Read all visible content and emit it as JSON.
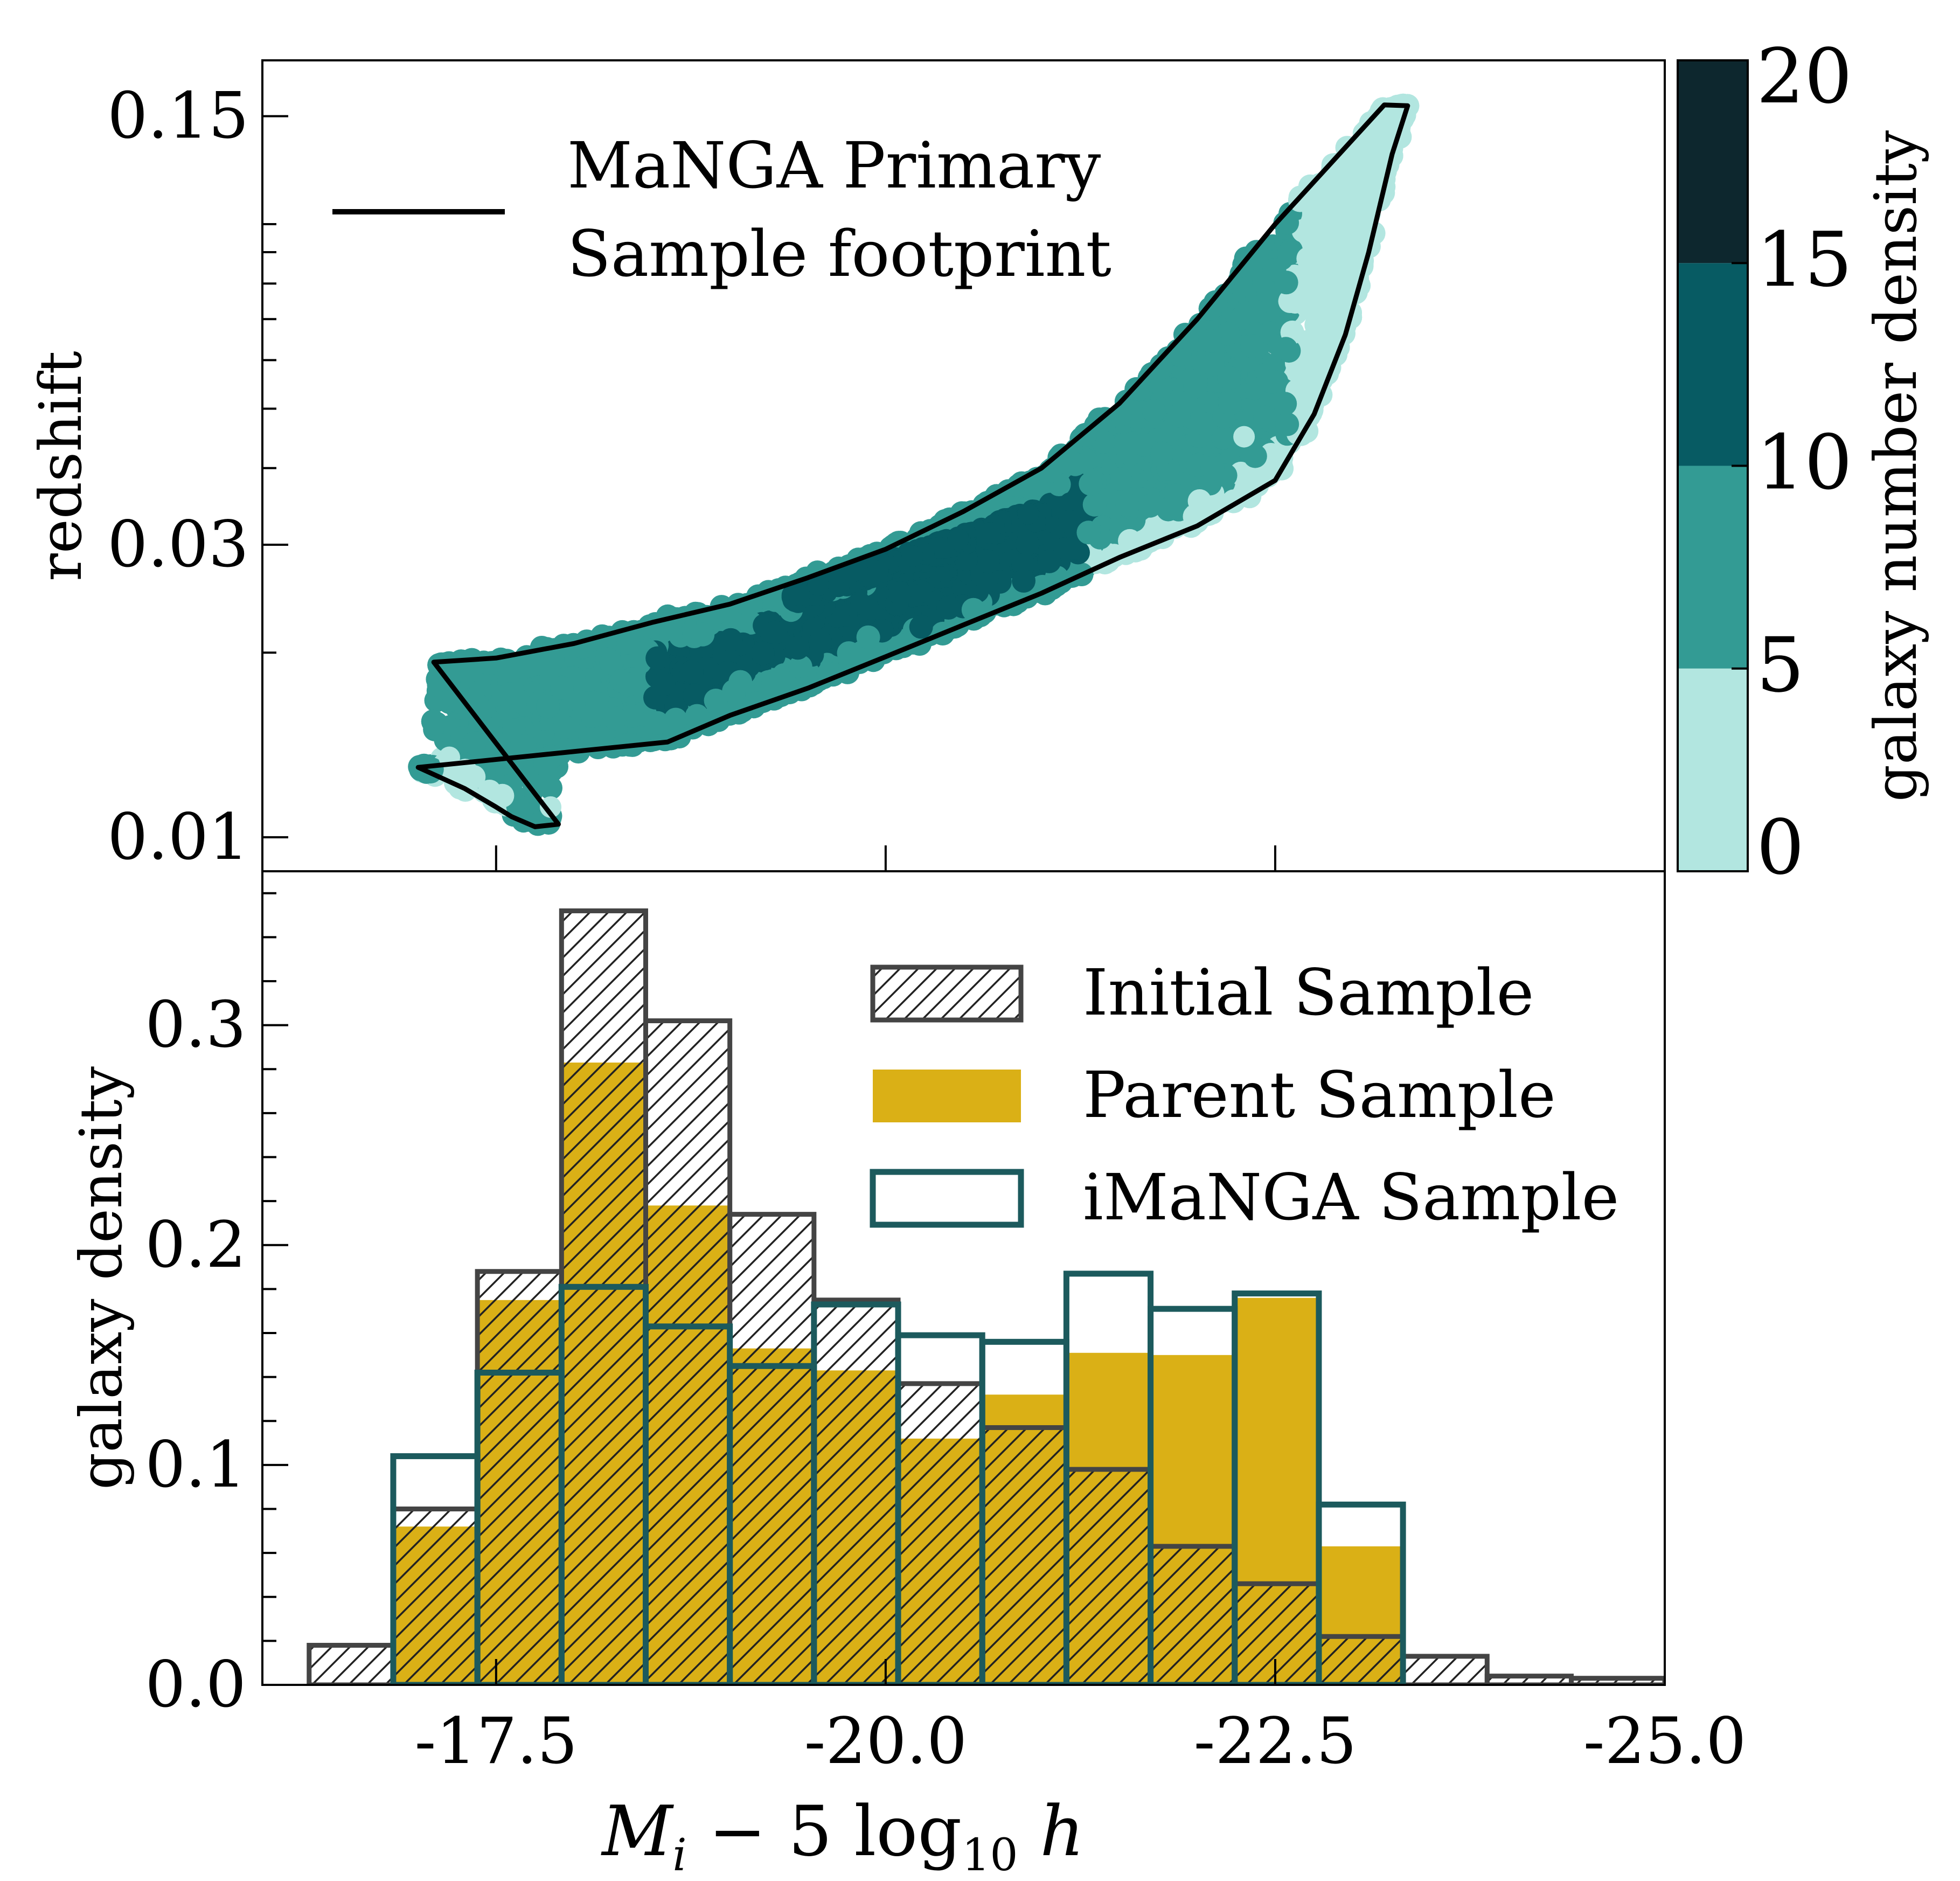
{
  "chart_data": [
    {
      "panel": "top",
      "type": "scatter",
      "ylabel": "redshift",
      "y_scale": "log",
      "ylim": [
        0.0088,
        0.185
      ],
      "xlim": [
        -16,
        -25
      ],
      "y_ticks": [
        {
          "value": 0.15,
          "label": "0.15"
        },
        {
          "value": 0.03,
          "label": "0.03"
        },
        {
          "value": 0.01,
          "label": "0.01"
        }
      ],
      "x_ticks": [
        -17.5,
        -20.0,
        -22.5
      ],
      "legend": {
        "position": "top-left",
        "label": "MaNGA Primary\nSample footprint"
      },
      "footprint_polygon": [
        [
          -17.1,
          0.0193
        ],
        [
          -17.9,
          0.0105
        ],
        [
          -17.75,
          0.0104
        ],
        [
          -17.6,
          0.0108
        ],
        [
          -17.5,
          0.0112
        ],
        [
          -17.3,
          0.012
        ],
        [
          -17.0,
          0.013
        ],
        [
          -18.6,
          0.0143
        ],
        [
          -19.0,
          0.0158
        ],
        [
          -19.5,
          0.0175
        ],
        [
          -20.0,
          0.0197
        ],
        [
          -20.5,
          0.0222
        ],
        [
          -21.0,
          0.025
        ],
        [
          -21.5,
          0.0286
        ],
        [
          -22.0,
          0.0322
        ],
        [
          -22.5,
          0.0382
        ],
        [
          -22.75,
          0.049
        ],
        [
          -22.95,
          0.066
        ],
        [
          -23.1,
          0.09
        ],
        [
          -23.25,
          0.13
        ],
        [
          -23.35,
          0.156
        ],
        [
          -23.2,
          0.1565
        ],
        [
          -22.5,
          0.1
        ],
        [
          -22.0,
          0.07
        ],
        [
          -21.5,
          0.051
        ],
        [
          -21.0,
          0.04
        ],
        [
          -20.5,
          0.034
        ],
        [
          -20.0,
          0.0295
        ],
        [
          -19.5,
          0.0265
        ],
        [
          -19.0,
          0.024
        ],
        [
          -18.5,
          0.0224
        ],
        [
          -18.0,
          0.0207
        ],
        [
          -17.5,
          0.0196
        ]
      ],
      "colorbar": {
        "label": "galaxy number density",
        "ticks": [
          0,
          5,
          10,
          15,
          20
        ],
        "levels": [
          {
            "range": [
              0,
              5
            ],
            "color": "#b2e6e0"
          },
          {
            "range": [
              5,
              10
            ],
            "color": "#339b94"
          },
          {
            "range": [
              10,
              15
            ],
            "color": "#075b63"
          },
          {
            "range": [
              15,
              20
            ],
            "color": "#0d272e"
          }
        ]
      }
    },
    {
      "panel": "bottom",
      "type": "bar",
      "ylabel": "galaxy density",
      "xlabel": "M_i − 5 log₁₀ h",
      "xlim": [
        -16,
        -25
      ],
      "ylim": [
        0,
        0.37
      ],
      "y_ticks": [
        0.0,
        0.1,
        0.2,
        0.3
      ],
      "x_ticks": [
        {
          "value": -17.5,
          "label": "-17.5"
        },
        {
          "value": -20.0,
          "label": "-20.0"
        },
        {
          "value": -22.5,
          "label": "-22.5"
        },
        {
          "value": -25.0,
          "label": "-25.0"
        }
      ],
      "bin_edges": [
        -16.3,
        -16.84,
        -17.38,
        -17.92,
        -18.46,
        -19.0,
        -19.54,
        -20.08,
        -20.62,
        -21.16,
        -21.7,
        -22.24,
        -22.78,
        -23.32,
        -23.86,
        -24.4,
        -25.0
      ],
      "series": [
        {
          "name": "Initial Sample",
          "style": "hatched",
          "values": [
            0.018,
            0.08,
            0.188,
            0.352,
            0.302,
            0.214,
            0.175,
            0.137,
            0.117,
            0.098,
            0.063,
            0.046,
            0.022,
            0.013,
            0.004,
            0.003
          ]
        },
        {
          "name": "Parent Sample",
          "style": "filled",
          "color": "#dab016",
          "values": [
            0.0,
            0.072,
            0.175,
            0.283,
            0.218,
            0.153,
            0.143,
            0.112,
            0.132,
            0.151,
            0.15,
            0.176,
            0.063,
            0.0,
            0.0,
            0.0
          ]
        },
        {
          "name": "iMaNGA Sample",
          "style": "outline",
          "color": "#1c5a5d",
          "values": [
            0.0,
            0.104,
            0.142,
            0.181,
            0.163,
            0.145,
            0.173,
            0.159,
            0.156,
            0.187,
            0.171,
            0.178,
            0.082,
            0.0,
            0.0,
            0.0
          ]
        }
      ],
      "legend": {
        "position": "top-right"
      }
    }
  ]
}
